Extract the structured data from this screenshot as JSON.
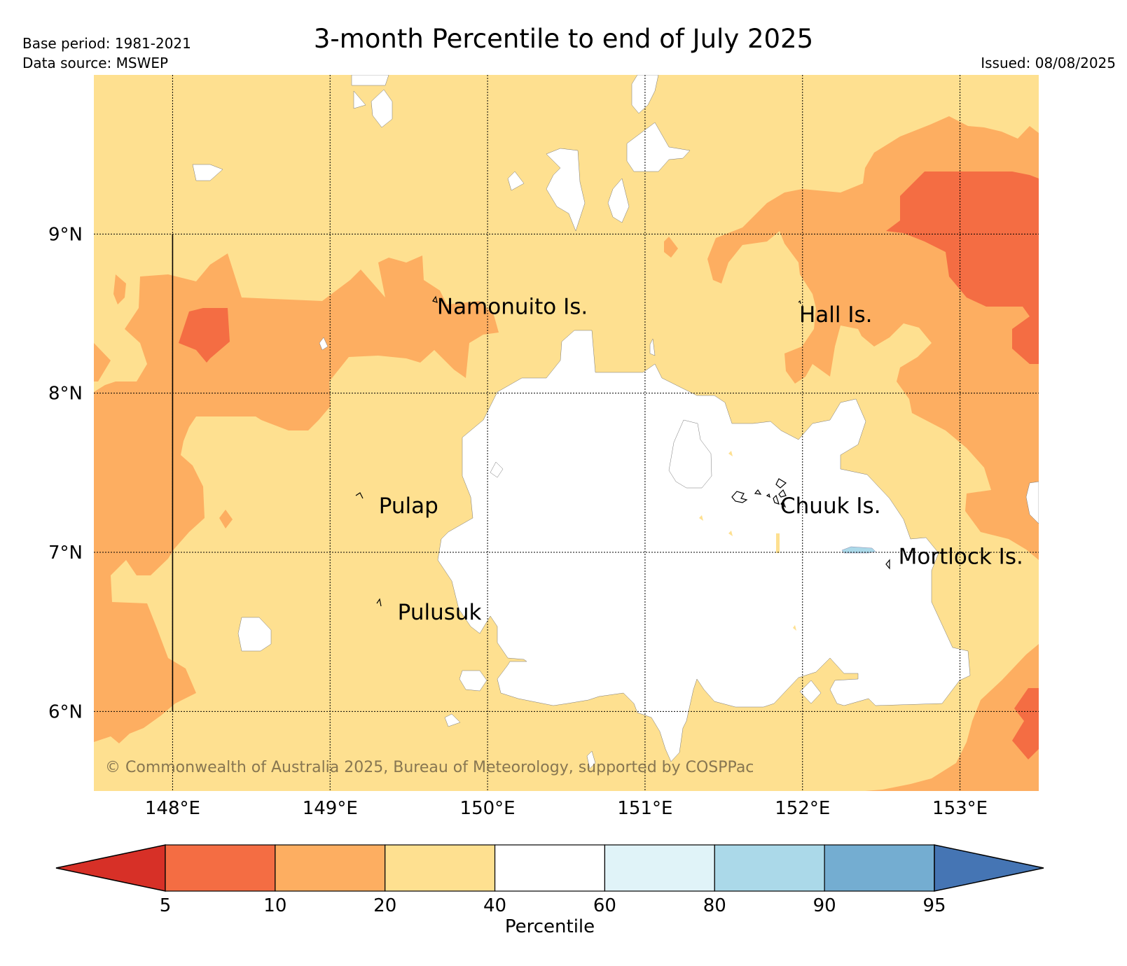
{
  "header": {
    "base_period": "Base period: 1981-2021",
    "data_source": "Data source: MSWEP",
    "issued": "Issued: 08/08/2025",
    "title": "3-month Percentile to end of July 2025"
  },
  "map": {
    "lon_range": [
      147.5,
      153.5
    ],
    "lat_range": [
      5.5,
      10.0
    ],
    "lon_ticks": [
      {
        "value": 148,
        "label": "148°E"
      },
      {
        "value": 149,
        "label": "149°E"
      },
      {
        "value": 150,
        "label": "150°E"
      },
      {
        "value": 151,
        "label": "151°E"
      },
      {
        "value": 152,
        "label": "152°E"
      },
      {
        "value": 153,
        "label": "153°E"
      }
    ],
    "lat_ticks": [
      {
        "value": 9,
        "label": "9°N"
      },
      {
        "value": 8,
        "label": "8°N"
      },
      {
        "value": 7,
        "label": "7°N"
      },
      {
        "value": 6,
        "label": "6°N"
      }
    ],
    "grid": true,
    "background_class": "20-40",
    "place_labels": [
      {
        "name": "Namonuito Is.",
        "lon": 149.67,
        "lat": 8.55
      },
      {
        "name": "Hall Is.",
        "lon": 151.97,
        "lat": 8.5
      },
      {
        "name": "Pulap",
        "lon": 149.3,
        "lat": 7.3
      },
      {
        "name": "Chuuk Is.",
        "lon": 151.85,
        "lat": 7.3
      },
      {
        "name": "Mortlock Is.",
        "lon": 152.6,
        "lat": 6.98
      },
      {
        "name": "Pulusuk",
        "lon": 149.42,
        "lat": 6.63
      }
    ],
    "copyright": "© Commonwealth of Australia 2025, Bureau of Meteorology, supported by COSPPac"
  },
  "colorbar": {
    "label": "Percentile",
    "boundaries": [
      "5",
      "10",
      "20",
      "40",
      "60",
      "80",
      "90",
      "95"
    ],
    "colors": {
      "lt5": "#d73027",
      "5-10": "#f46d43",
      "10-20": "#fdae61",
      "20-40": "#fee090",
      "40-60": "#ffffff",
      "60-80": "#e0f3f8",
      "80-90": "#abd9e9",
      "90-95": "#74add1",
      "gt95": "#4575b4"
    }
  }
}
